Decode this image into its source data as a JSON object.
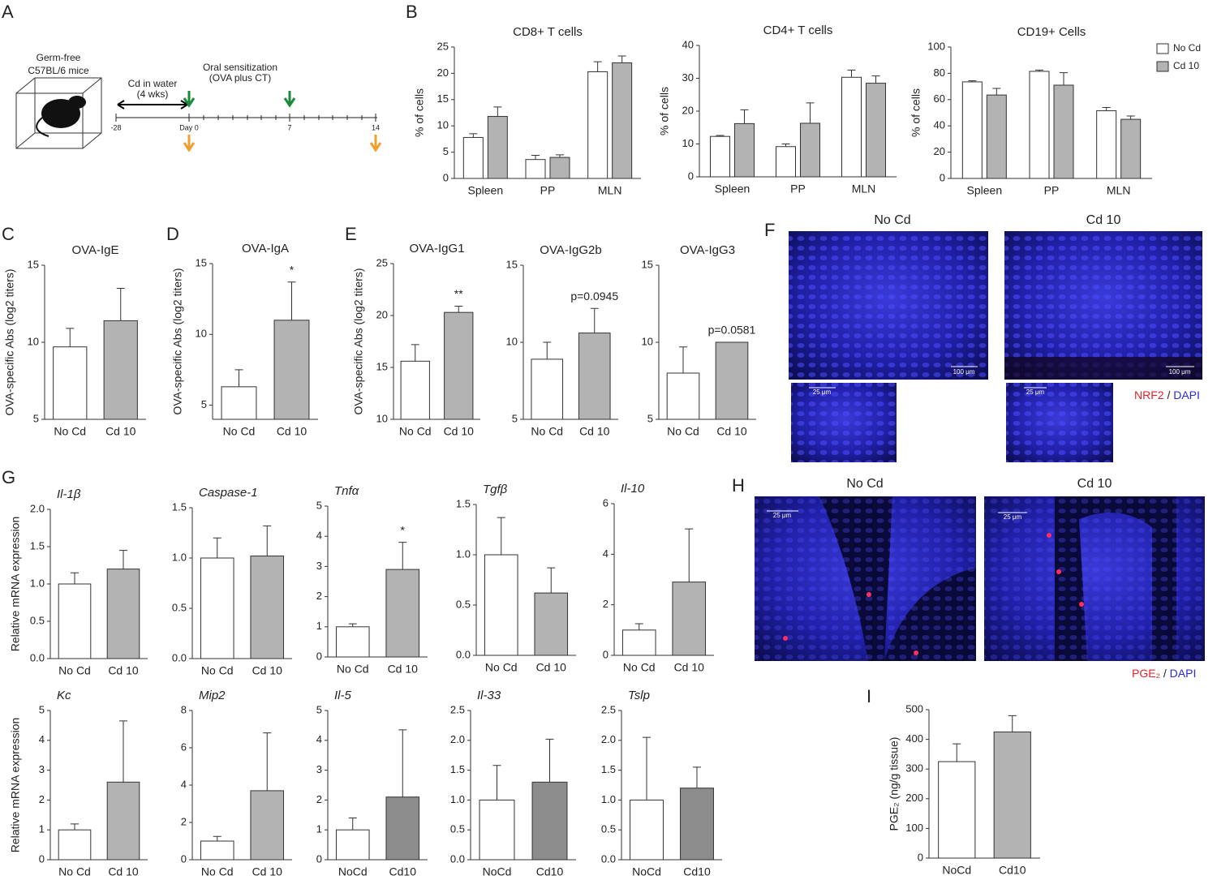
{
  "panel_labels": [
    "A",
    "B",
    "C",
    "D",
    "E",
    "F",
    "G",
    "H",
    "I"
  ],
  "schematic": {
    "mice": [
      "Germ-free",
      "C57BL/6 mice"
    ],
    "exposure": [
      "Cd in water",
      "(4 wks)"
    ],
    "sensitization": [
      "Oral sensitization",
      "(OVA plus CT)"
    ],
    "timeline": [
      "-28",
      "Day 0",
      "7",
      "14"
    ]
  },
  "micrographs_f": {
    "groups": [
      "No Cd",
      "Cd 10"
    ],
    "scale_large": "100 μm",
    "scale_small": "25 μm",
    "marker": "NRF2",
    "separator": "/",
    "counterstain": "DAPI"
  },
  "micrographs_h": {
    "groups": [
      "No Cd",
      "Cd 10"
    ],
    "scale": "25 μm",
    "marker": "PGE₂",
    "separator": "/",
    "counterstain": "DAPI"
  },
  "chart_data": [
    {
      "type": "bar",
      "title": "CD8+ T cells",
      "ylabel": "% of cells",
      "categories": [
        "Spleen",
        "PP",
        "MLN"
      ],
      "series": [
        {
          "color": "#ffffff",
          "values": [
            7.8,
            3.6,
            20.3
          ],
          "errors": [
            0.7,
            0.8,
            1.9
          ]
        },
        {
          "color": "#b3b3b3",
          "values": [
            11.8,
            4.0,
            22.0
          ],
          "errors": [
            1.8,
            0.5,
            1.3
          ]
        }
      ],
      "ylim": [
        0,
        25
      ],
      "yticks": [
        0,
        5,
        10,
        15,
        20,
        25
      ]
    },
    {
      "type": "bar",
      "title": "CD4+ T cells",
      "ylabel": "% of cells",
      "categories": [
        "Spleen",
        "PP",
        "MLN"
      ],
      "series": [
        {
          "color": "#ffffff",
          "values": [
            12.3,
            9.2,
            30.3
          ],
          "errors": [
            0.3,
            0.8,
            2.2
          ]
        },
        {
          "color": "#b3b3b3",
          "values": [
            16.2,
            16.3,
            28.5
          ],
          "errors": [
            4.2,
            6.2,
            2.2
          ]
        }
      ],
      "ylim": [
        0,
        40
      ],
      "yticks": [
        0,
        10,
        20,
        30,
        40
      ]
    },
    {
      "type": "bar",
      "title": "CD19+ Cells",
      "ylabel": "% of cells",
      "categories": [
        "Spleen",
        "PP",
        "MLN"
      ],
      "series": [
        {
          "name": "No Cd",
          "color": "#ffffff",
          "values": [
            73.5,
            81.5,
            51.5
          ],
          "errors": [
            0.8,
            1.0,
            2.5
          ]
        },
        {
          "name": "Cd 10",
          "color": "#b3b3b3",
          "values": [
            63.5,
            71.0,
            45.0
          ],
          "errors": [
            5.0,
            9.5,
            2.5
          ]
        }
      ],
      "ylim": [
        0,
        100
      ],
      "yticks": [
        0,
        20,
        40,
        60,
        80,
        100
      ],
      "legend": "right"
    },
    {
      "type": "bar",
      "title": "OVA-IgE",
      "ylabel": "OVA-specific Abs (log2 titers)",
      "categories": [
        "No Cd",
        "Cd 10"
      ],
      "values": [
        9.7,
        11.4
      ],
      "errors": [
        1.2,
        2.1
      ],
      "colors": [
        "#ffffff",
        "#b3b3b3"
      ],
      "ylim": [
        5,
        15
      ],
      "yticks": [
        5,
        10,
        15
      ]
    },
    {
      "type": "bar",
      "title": "OVA-IgA",
      "ylabel": "OVA-specific Abs (log2 titers)",
      "categories": [
        "No Cd",
        "Cd 10"
      ],
      "values": [
        6.3,
        11.0
      ],
      "errors": [
        1.2,
        2.7
      ],
      "colors": [
        "#ffffff",
        "#b3b3b3"
      ],
      "ylim": [
        4,
        15
      ],
      "yticks": [
        5,
        10,
        15
      ],
      "annotation": "*"
    },
    {
      "type": "bar",
      "title": "OVA-IgG1",
      "ylabel": "OVA-specific Abs (log2 titers)",
      "categories": [
        "No Cd",
        "Cd 10"
      ],
      "values": [
        15.6,
        20.3
      ],
      "errors": [
        1.6,
        0.6
      ],
      "colors": [
        "#ffffff",
        "#b3b3b3"
      ],
      "ylim": [
        10,
        25
      ],
      "yticks": [
        10,
        15,
        20,
        25
      ],
      "annotation": "**"
    },
    {
      "type": "bar",
      "title": "OVA-IgG2b",
      "categories": [
        "No Cd",
        "Cd 10"
      ],
      "values": [
        8.9,
        10.6
      ],
      "errors": [
        1.1,
        1.6
      ],
      "colors": [
        "#ffffff",
        "#b3b3b3"
      ],
      "ylim": [
        5,
        15
      ],
      "yticks": [
        5,
        10,
        15
      ],
      "annotation": "p=0.0945"
    },
    {
      "type": "bar",
      "title": "OVA-IgG3",
      "categories": [
        "No Cd",
        "Cd 10"
      ],
      "values": [
        8.0,
        10.0
      ],
      "errors": [
        1.7,
        0
      ],
      "colors": [
        "#ffffff",
        "#b3b3b3"
      ],
      "ylim": [
        5,
        15
      ],
      "yticks": [
        5,
        10,
        15
      ],
      "annotation": "p=0.0581"
    },
    {
      "type": "bar",
      "title": "Il-1β",
      "ylabel": "Relative mRNA expression",
      "categories": [
        "No Cd",
        "Cd 10"
      ],
      "values": [
        1.0,
        1.2
      ],
      "errors": [
        0.15,
        0.25
      ],
      "colors": [
        "#ffffff",
        "#b3b3b3"
      ],
      "ylim": [
        0,
        2
      ],
      "yticks": [
        {
          "value": 0,
          "label": "0.0"
        },
        0.5,
        {
          "value": 1,
          "label": "1.0"
        },
        1.5,
        {
          "value": 2,
          "label": "2.0"
        }
      ]
    },
    {
      "type": "bar",
      "title": "Caspase-1",
      "categories": [
        "No Cd",
        "Cd 10"
      ],
      "values": [
        1.0,
        1.02
      ],
      "errors": [
        0.2,
        0.3
      ],
      "colors": [
        "#ffffff",
        "#b3b3b3"
      ],
      "ylim": [
        0,
        1.5
      ],
      "yticks": [
        {
          "value": 0,
          "label": "0.0"
        },
        0.5,
        {
          "value": 1,
          "label": "1.0"
        },
        1.5
      ]
    },
    {
      "type": "bar",
      "title": "Tnfα",
      "categories": [
        "No Cd",
        "Cd 10"
      ],
      "values": [
        1.0,
        2.9
      ],
      "errors": [
        0.1,
        0.9
      ],
      "colors": [
        "#ffffff",
        "#b3b3b3"
      ],
      "ylim": [
        0,
        5
      ],
      "yticks": [
        0,
        1,
        2,
        3,
        4,
        5
      ],
      "annotation": "*"
    },
    {
      "type": "bar",
      "title": "Tgfβ",
      "categories": [
        "No Cd",
        "Cd 10"
      ],
      "values": [
        1.0,
        0.62
      ],
      "errors": [
        0.37,
        0.25
      ],
      "colors": [
        "#ffffff",
        "#b3b3b3"
      ],
      "ylim": [
        0,
        1.5
      ],
      "yticks": [
        {
          "value": 0,
          "label": "0.0"
        },
        0.5,
        {
          "value": 1,
          "label": "1.0"
        },
        1.5
      ]
    },
    {
      "type": "bar",
      "title": "Il-10",
      "categories": [
        "No Cd",
        "Cd 10"
      ],
      "values": [
        1.0,
        2.9
      ],
      "errors": [
        0.25,
        2.1
      ],
      "colors": [
        "#ffffff",
        "#b3b3b3"
      ],
      "ylim": [
        0,
        6
      ],
      "yticks": [
        0,
        2,
        4,
        6
      ]
    },
    {
      "type": "bar",
      "title": "Kc",
      "ylabel": "Relative mRNA expression",
      "categories": [
        "No Cd",
        "Cd 10"
      ],
      "values": [
        1.0,
        2.6
      ],
      "errors": [
        0.2,
        2.05
      ],
      "colors": [
        "#ffffff",
        "#b3b3b3"
      ],
      "ylim": [
        0,
        5
      ],
      "yticks": [
        0,
        1,
        2,
        3,
        4,
        5
      ]
    },
    {
      "type": "bar",
      "title": "Mip2",
      "categories": [
        "No Cd",
        "Cd 10"
      ],
      "values": [
        1.0,
        3.7
      ],
      "errors": [
        0.25,
        3.1
      ],
      "colors": [
        "#ffffff",
        "#b3b3b3"
      ],
      "ylim": [
        0,
        8
      ],
      "yticks": [
        0,
        2,
        4,
        6,
        8
      ]
    },
    {
      "type": "bar",
      "title": "Il-5",
      "categories": [
        "NoCd",
        "Cd10"
      ],
      "values": [
        1.0,
        2.1
      ],
      "errors": [
        0.4,
        2.25
      ],
      "colors": [
        "#ffffff",
        "#8c8c8c"
      ],
      "ylim": [
        0,
        5
      ],
      "yticks": [
        0,
        1,
        2,
        3,
        4,
        5
      ]
    },
    {
      "type": "bar",
      "title": "Il-33",
      "categories": [
        "NoCd",
        "Cd10"
      ],
      "values": [
        1.0,
        1.3
      ],
      "errors": [
        0.58,
        0.72
      ],
      "colors": [
        "#ffffff",
        "#8c8c8c"
      ],
      "ylim": [
        0,
        2.5
      ],
      "yticks": [
        {
          "value": 0,
          "label": "0.0"
        },
        0.5,
        {
          "value": 1,
          "label": "1.0"
        },
        1.5,
        {
          "value": 2,
          "label": "2.0"
        },
        2.5
      ]
    },
    {
      "type": "bar",
      "title": "Tslp",
      "categories": [
        "NoCd",
        "Cd10"
      ],
      "values": [
        1.0,
        1.2
      ],
      "errors": [
        1.05,
        0.35
      ],
      "colors": [
        "#ffffff",
        "#8c8c8c"
      ],
      "ylim": [
        0,
        2.5
      ],
      "yticks": [
        {
          "value": 0,
          "label": "0.0"
        },
        0.5,
        {
          "value": 1,
          "label": "1.0"
        },
        1.5,
        {
          "value": 2,
          "label": "2.0"
        },
        2.5
      ]
    },
    {
      "type": "bar",
      "ylabel": "PGE₂ (ng/g tissue)",
      "categories": [
        "NoCd",
        "Cd10"
      ],
      "values": [
        325,
        425
      ],
      "errors": [
        60,
        55
      ],
      "colors": [
        "#ffffff",
        "#b3b3b3"
      ],
      "ylim": [
        0,
        500
      ],
      "yticks": [
        0,
        100,
        200,
        300,
        400,
        500
      ]
    }
  ]
}
